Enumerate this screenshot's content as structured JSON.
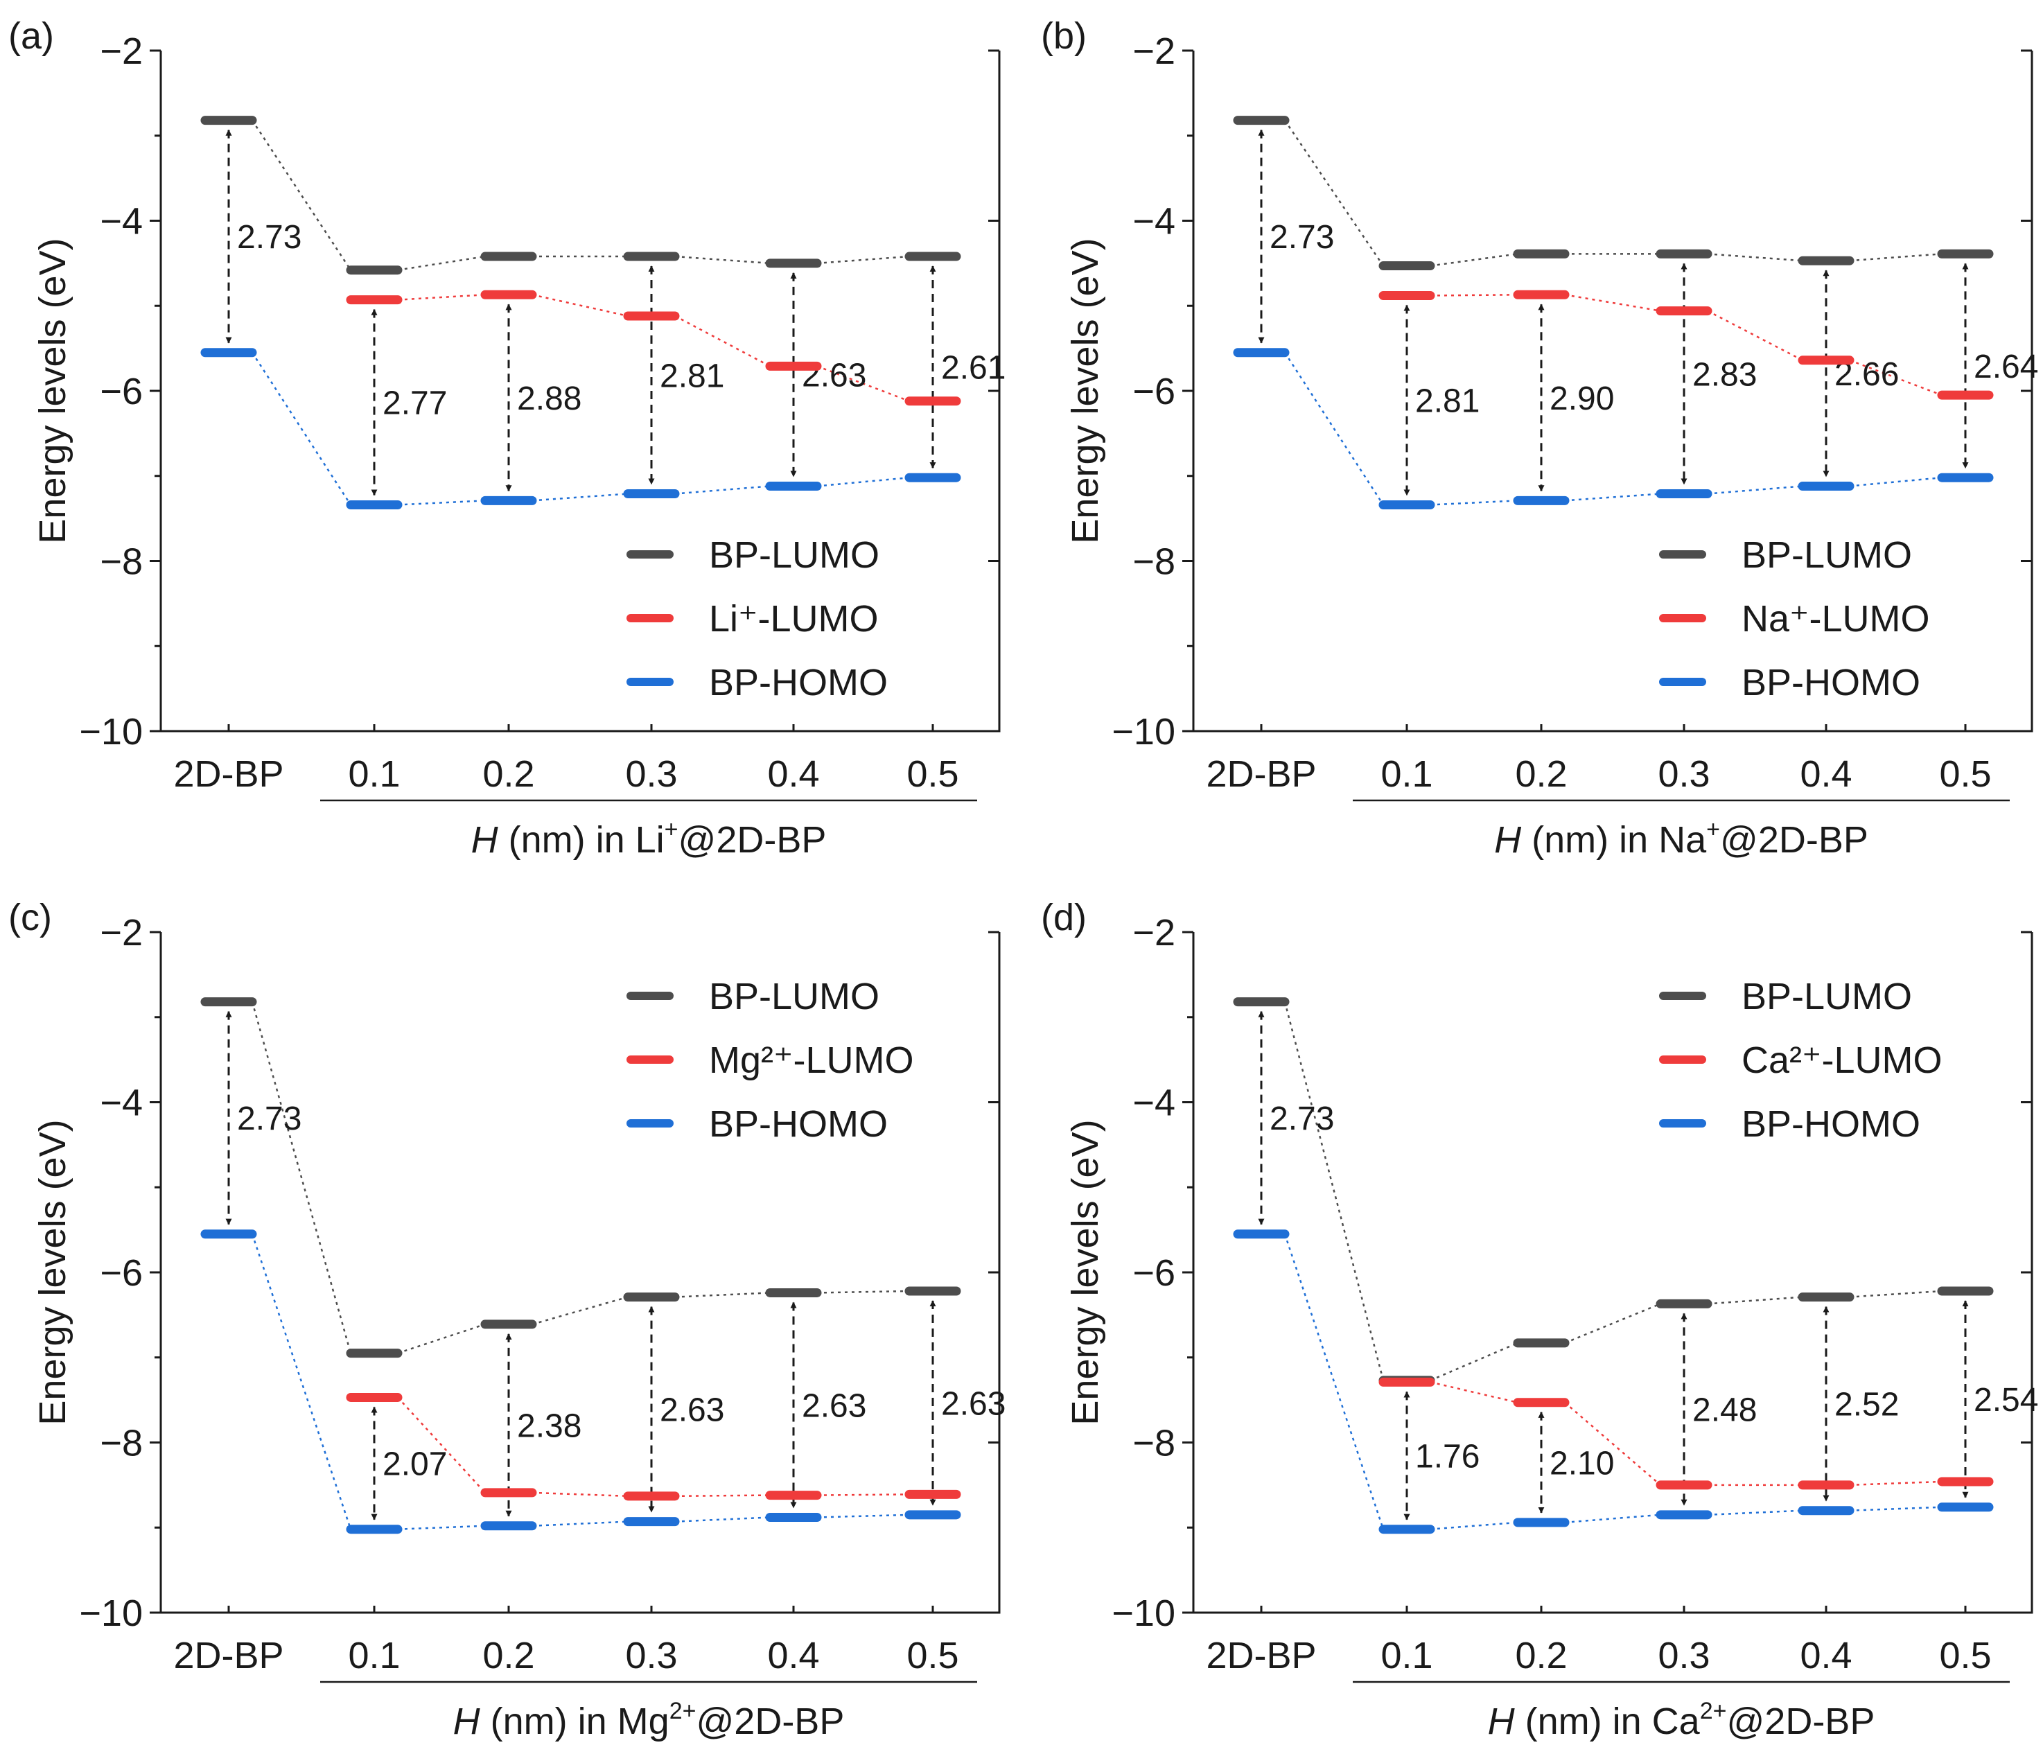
{
  "colors": {
    "bp_lumo": "#4d4d4d",
    "ion_lumo": "#ef3b3b",
    "bp_homo": "#1f6fd6",
    "arrow": "#1a1a1a",
    "axis": "#1a1a1a"
  },
  "chart_data": [
    {
      "type": "line",
      "panel_label": "(a)",
      "categories": [
        "2D-BP",
        "0.1",
        "0.2",
        "0.3",
        "0.4",
        "0.5"
      ],
      "xlabel_italic": "H",
      "xlabel_rest": " (nm) in Li",
      "xlabel_sup": "+",
      "xlabel_tail": "@2D-BP",
      "ylabel": "Energy levels (eV)",
      "ylim": [
        -10,
        -2
      ],
      "yticks": [
        "−10",
        "−8",
        "−6",
        "−4",
        "−2"
      ],
      "ytick_values": [
        -10,
        -8,
        -6,
        -4,
        -2
      ],
      "legend_position": "bottom-right",
      "series": [
        {
          "name": "BP-LUMO",
          "key": "bp_lumo",
          "values": [
            -2.82,
            -4.58,
            -4.42,
            -4.42,
            -4.5,
            -4.42
          ]
        },
        {
          "name": "Li⁺-LUMO",
          "key": "ion_lumo",
          "values": [
            null,
            -4.93,
            -4.87,
            -5.12,
            -5.71,
            -6.12
          ]
        },
        {
          "name": "BP-HOMO",
          "key": "bp_homo",
          "values": [
            -5.55,
            -7.34,
            -7.29,
            -7.21,
            -7.12,
            -7.02
          ]
        }
      ],
      "gaps": [
        {
          "index": 0,
          "top": "bp_lumo",
          "value": "2.73"
        },
        {
          "index": 1,
          "top": "ion_lumo",
          "value": "2.77"
        },
        {
          "index": 2,
          "top": "ion_lumo",
          "value": "2.88"
        },
        {
          "index": 3,
          "top": "bp_lumo",
          "value": "2.81"
        },
        {
          "index": 4,
          "top": "bp_lumo",
          "value": "2.63"
        },
        {
          "index": 5,
          "top": "bp_lumo",
          "value": "2.61"
        }
      ]
    },
    {
      "type": "line",
      "panel_label": "(b)",
      "categories": [
        "2D-BP",
        "0.1",
        "0.2",
        "0.3",
        "0.4",
        "0.5"
      ],
      "xlabel_italic": "H",
      "xlabel_rest": " (nm) in Na",
      "xlabel_sup": "+",
      "xlabel_tail": "@2D-BP",
      "ylabel": "Energy levels (eV)",
      "ylim": [
        -10,
        -2
      ],
      "yticks": [
        "−10",
        "−8",
        "−6",
        "−4",
        "−2"
      ],
      "ytick_values": [
        -10,
        -8,
        -6,
        -4,
        -2
      ],
      "legend_position": "bottom-right",
      "series": [
        {
          "name": "BP-LUMO",
          "key": "bp_lumo",
          "values": [
            -2.82,
            -4.53,
            -4.39,
            -4.39,
            -4.47,
            -4.39
          ]
        },
        {
          "name": "Na⁺-LUMO",
          "key": "ion_lumo",
          "values": [
            null,
            -4.88,
            -4.87,
            -5.06,
            -5.64,
            -6.05
          ]
        },
        {
          "name": "BP-HOMO",
          "key": "bp_homo",
          "values": [
            -5.55,
            -7.34,
            -7.29,
            -7.21,
            -7.12,
            -7.02
          ]
        }
      ],
      "gaps": [
        {
          "index": 0,
          "top": "bp_lumo",
          "value": "2.73"
        },
        {
          "index": 1,
          "top": "ion_lumo",
          "value": "2.81"
        },
        {
          "index": 2,
          "top": "ion_lumo",
          "value": "2.90"
        },
        {
          "index": 3,
          "top": "bp_lumo",
          "value": "2.83"
        },
        {
          "index": 4,
          "top": "bp_lumo",
          "value": "2.66"
        },
        {
          "index": 5,
          "top": "bp_lumo",
          "value": "2.64"
        }
      ]
    },
    {
      "type": "line",
      "panel_label": "(c)",
      "categories": [
        "2D-BP",
        "0.1",
        "0.2",
        "0.3",
        "0.4",
        "0.5"
      ],
      "xlabel_italic": "H",
      "xlabel_rest": " (nm) in Mg",
      "xlabel_sup": "2+",
      "xlabel_tail": "@2D-BP",
      "ylabel": "Energy levels (eV)",
      "ylim": [
        -10,
        -2
      ],
      "yticks": [
        "−10",
        "−8",
        "−6",
        "−4",
        "−2"
      ],
      "ytick_values": [
        -10,
        -8,
        -6,
        -4,
        -2
      ],
      "legend_position": "top-right",
      "series": [
        {
          "name": "BP-LUMO",
          "key": "bp_lumo",
          "values": [
            -2.82,
            -6.95,
            -6.61,
            -6.29,
            -6.24,
            -6.22
          ]
        },
        {
          "name": "Mg²⁺-LUMO",
          "key": "ion_lumo",
          "values": [
            null,
            -7.47,
            -8.59,
            -8.63,
            -8.62,
            -8.61
          ]
        },
        {
          "name": "BP-HOMO",
          "key": "bp_homo",
          "values": [
            -5.55,
            -9.02,
            -8.98,
            -8.93,
            -8.88,
            -8.85
          ]
        }
      ],
      "gaps": [
        {
          "index": 0,
          "top": "bp_lumo",
          "value": "2.73"
        },
        {
          "index": 1,
          "top": "ion_lumo",
          "value": "2.07"
        },
        {
          "index": 2,
          "top": "bp_lumo",
          "value": "2.38"
        },
        {
          "index": 3,
          "top": "bp_lumo",
          "value": "2.63"
        },
        {
          "index": 4,
          "top": "bp_lumo",
          "value": "2.63"
        },
        {
          "index": 5,
          "top": "bp_lumo",
          "value": "2.63"
        }
      ]
    },
    {
      "type": "line",
      "panel_label": "(d)",
      "categories": [
        "2D-BP",
        "0.1",
        "0.2",
        "0.3",
        "0.4",
        "0.5"
      ],
      "xlabel_italic": "H",
      "xlabel_rest": " (nm) in Ca",
      "xlabel_sup": "2+",
      "xlabel_tail": "@2D-BP",
      "ylabel": "Energy levels (eV)",
      "ylim": [
        -10,
        -2
      ],
      "yticks": [
        "−10",
        "−8",
        "−6",
        "−4",
        "−2"
      ],
      "ytick_values": [
        -10,
        -8,
        -6,
        -4,
        -2
      ],
      "legend_position": "top-right",
      "series": [
        {
          "name": "BP-LUMO",
          "key": "bp_lumo",
          "values": [
            -2.82,
            -7.27,
            -6.83,
            -6.37,
            -6.29,
            -6.22
          ]
        },
        {
          "name": "Ca²⁺-LUMO",
          "key": "ion_lumo",
          "values": [
            null,
            -7.29,
            -7.53,
            -8.5,
            -8.5,
            -8.46
          ]
        },
        {
          "name": "BP-HOMO",
          "key": "bp_homo",
          "values": [
            -5.55,
            -9.02,
            -8.94,
            -8.85,
            -8.8,
            -8.76
          ]
        }
      ],
      "gaps": [
        {
          "index": 0,
          "top": "bp_lumo",
          "value": "2.73"
        },
        {
          "index": 1,
          "top": "ion_lumo",
          "value": "1.76"
        },
        {
          "index": 2,
          "top": "ion_lumo",
          "value": "2.10"
        },
        {
          "index": 3,
          "top": "bp_lumo",
          "value": "2.48"
        },
        {
          "index": 4,
          "top": "bp_lumo",
          "value": "2.52"
        },
        {
          "index": 5,
          "top": "bp_lumo",
          "value": "2.54"
        }
      ]
    }
  ]
}
